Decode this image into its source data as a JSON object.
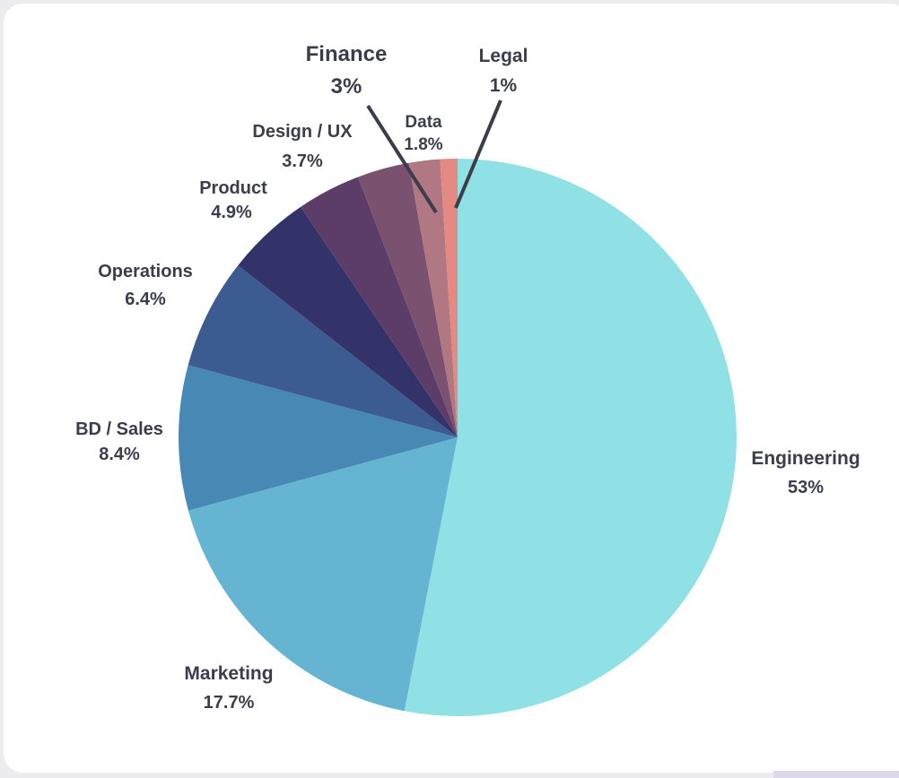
{
  "chart_data": {
    "type": "pie",
    "title": "",
    "start_angle_deg": 0,
    "direction": "clockwise",
    "legend": "none",
    "labels_placement": "outside",
    "slices": [
      {
        "name": "Engineering",
        "value": 53,
        "label": "53%",
        "color": "#8fe1e6"
      },
      {
        "name": "Marketing",
        "value": 17.7,
        "label": "17.7%",
        "color": "#65b4d2"
      },
      {
        "name": "BD / Sales",
        "value": 8.4,
        "label": "8.4%",
        "color": "#4788b4"
      },
      {
        "name": "Operations",
        "value": 6.4,
        "label": "6.4%",
        "color": "#3b5b91"
      },
      {
        "name": "Product",
        "value": 4.9,
        "label": "4.9%",
        "color": "#33336a"
      },
      {
        "name": "Design / UX",
        "value": 3.7,
        "label": "3.7%",
        "color": "#5b3d68"
      },
      {
        "name": "Finance",
        "value": 3,
        "label": "3%",
        "color": "#7a5270"
      },
      {
        "name": "Data",
        "value": 1.8,
        "label": "1.8%",
        "color": "#b17884"
      },
      {
        "name": "Legal",
        "value": 1,
        "label": "1%",
        "color": "#e48a82"
      }
    ]
  }
}
